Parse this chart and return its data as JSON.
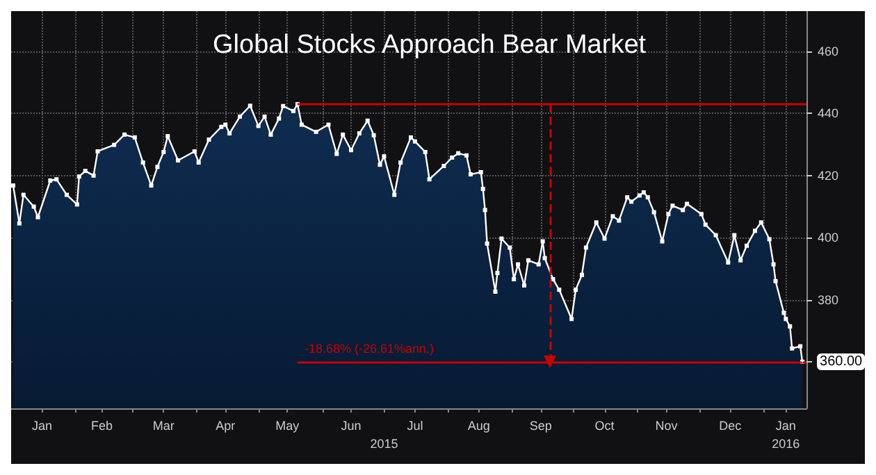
{
  "chart_data": {
    "type": "area",
    "title": "Global Stocks Approach Bear Market",
    "x": [
      "2015-01-02",
      "2015-01-05",
      "2015-01-07",
      "2015-01-12",
      "2015-01-14",
      "2015-01-20",
      "2015-01-23",
      "2015-01-28",
      "2015-02-02",
      "2015-02-03",
      "2015-02-06",
      "2015-02-10",
      "2015-02-12",
      "2015-02-20",
      "2015-02-25",
      "2015-03-02",
      "2015-03-06",
      "2015-03-10",
      "2015-03-13",
      "2015-03-16",
      "2015-03-18",
      "2015-03-23",
      "2015-03-31",
      "2015-04-02",
      "2015-04-07",
      "2015-04-13",
      "2015-04-15",
      "2015-04-17",
      "2015-04-22",
      "2015-04-27",
      "2015-05-01",
      "2015-05-04",
      "2015-05-07",
      "2015-05-11",
      "2015-05-13",
      "2015-05-18",
      "2015-05-20",
      "2015-05-22",
      "2015-05-29",
      "2015-06-04",
      "2015-06-08",
      "2015-06-11",
      "2015-06-15",
      "2015-06-19",
      "2015-06-23",
      "2015-06-26",
      "2015-06-29",
      "2015-07-01",
      "2015-07-06",
      "2015-07-09",
      "2015-07-14",
      "2015-07-16",
      "2015-07-21",
      "2015-07-23",
      "2015-07-30",
      "2015-08-03",
      "2015-08-06",
      "2015-08-10",
      "2015-08-12",
      "2015-08-17",
      "2015-08-18",
      "2015-08-19",
      "2015-08-20",
      "2015-08-24",
      "2015-08-25",
      "2015-08-27",
      "2015-08-31",
      "2015-09-02",
      "2015-09-04",
      "2015-09-07",
      "2015-09-09",
      "2015-09-14",
      "2015-09-16",
      "2015-09-17",
      "2015-09-21",
      "2015-09-24",
      "2015-09-30",
      "2015-10-02",
      "2015-10-05",
      "2015-10-07",
      "2015-10-12",
      "2015-10-16",
      "2015-10-20",
      "2015-10-23",
      "2015-10-27",
      "2015-10-29",
      "2015-11-02",
      "2015-11-04",
      "2015-11-06",
      "2015-11-09",
      "2015-11-13",
      "2015-11-16",
      "2015-11-18",
      "2015-11-23",
      "2015-11-25",
      "2015-12-02",
      "2015-12-04",
      "2015-12-09",
      "2015-12-15",
      "2015-12-18",
      "2015-12-21",
      "2015-12-24",
      "2015-12-28",
      "2015-12-31",
      "2016-01-04",
      "2016-01-06",
      "2016-01-07",
      "2016-01-11",
      "2016-01-12",
      "2016-01-14",
      "2016-01-15",
      "2016-01-19",
      "2016-01-20"
    ],
    "series": [
      {
        "color": "#ffffff",
        "values": [
          416.8,
          404.6,
          413.8,
          410,
          406.6,
          418.4,
          418.8,
          413.8,
          410.7,
          419.7,
          421.5,
          420,
          427.8,
          429.9,
          433.2,
          432.3,
          424.2,
          416.8,
          422.8,
          427.6,
          432.7,
          424.9,
          427.8,
          424.2,
          431.6,
          435.7,
          436.4,
          433.6,
          439,
          442.5,
          436,
          439,
          433.2,
          438.4,
          442.4,
          440.8,
          443,
          436.4,
          434.1,
          436.4,
          427,
          433.2,
          428.2,
          433.6,
          437.7,
          433,
          423.5,
          426.2,
          413.8,
          424.2,
          432.3,
          431,
          427.6,
          418.8,
          423.1,
          425.8,
          427.2,
          426.5,
          420.4,
          421.1,
          415.7,
          408.9,
          398.1,
          382.6,
          388.6,
          399.7,
          396.8,
          386.6,
          391.4,
          384.6,
          392.7,
          391.4,
          398.8,
          393.4,
          386.6,
          383.2,
          373.8,
          383.2,
          388,
          396.8,
          404.9,
          399.7,
          406.9,
          405.5,
          413,
          411.6,
          413.6,
          414.6,
          413,
          408.2,
          398.8,
          407.6,
          410.3,
          408.9,
          410.9,
          407.6,
          404.2,
          400.8,
          392,
          400.8,
          392.7,
          397.4,
          402.2,
          404.9,
          399.5,
          391.4,
          386,
          375.8,
          373.8,
          371.4,
          364.3,
          365,
          360
        ]
      }
    ],
    "xlim": [
      "2015-01-01",
      "2016-01-22"
    ],
    "xticks": [
      {
        "value": "2015-01-16",
        "label": "Jan"
      },
      {
        "value": "2015-02-01",
        "label": null
      },
      {
        "value": "2015-02-14",
        "label": "Feb"
      },
      {
        "value": "2015-03-01",
        "label": null
      },
      {
        "value": "2015-03-16",
        "label": "Mar"
      },
      {
        "value": "2015-04-01",
        "label": null
      },
      {
        "value": "2015-04-15",
        "label": "Apr"
      },
      {
        "value": "2015-05-01",
        "label": null
      },
      {
        "value": "2015-05-15",
        "label": "May"
      },
      {
        "value": "2015-06-01",
        "label": null
      },
      {
        "value": "2015-06-15",
        "label": "Jun"
      },
      {
        "value": "2015-07-01",
        "label": null
      },
      {
        "value": "2015-07-16",
        "label": "Jul"
      },
      {
        "value": "2015-08-01",
        "label": null
      },
      {
        "value": "2015-08-16",
        "label": "Aug"
      },
      {
        "value": "2015-09-01",
        "label": null
      },
      {
        "value": "2015-09-15",
        "label": "Sep"
      },
      {
        "value": "2015-10-01",
        "label": null
      },
      {
        "value": "2015-10-16",
        "label": "Oct"
      },
      {
        "value": "2015-11-01",
        "label": null
      },
      {
        "value": "2015-11-15",
        "label": "Nov"
      },
      {
        "value": "2015-12-01",
        "label": null
      },
      {
        "value": "2015-12-16",
        "label": "Dec"
      },
      {
        "value": "2016-01-01",
        "label": null
      },
      {
        "value": "2016-01-12",
        "label": "Jan"
      }
    ],
    "x2lim": [
      "2015-01-01",
      "2016-01-22"
    ],
    "x2ticks": [
      {
        "value": "2015-07-01",
        "label": "2015"
      },
      {
        "value": "2016-01-12",
        "label": "2016"
      }
    ],
    "ylim": [
      345,
      473
    ],
    "yticks": [
      {
        "value": 360,
        "label": null
      },
      380,
      400,
      420,
      440,
      460
    ],
    "grid": true,
    "marker": "square",
    "ref_lines": [
      {
        "axis": "y",
        "value": 443,
        "color": "#cc0000"
      },
      {
        "axis": "y",
        "value": 360,
        "label": "-18.68% (-26.61%ann.)",
        "color": "#cc0000"
      }
    ],
    "annotations": [
      {
        "text": "360.00",
        "x": "2016-01-20",
        "y": 360
      }
    ]
  }
}
